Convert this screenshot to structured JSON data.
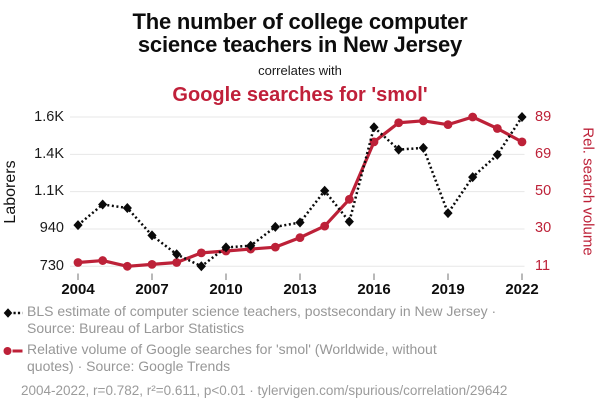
{
  "header": {
    "title_line1": "The number of college computer",
    "title_line2": "science teachers in New Jersey",
    "connector": "correlates with",
    "subtitle": "Google searches for 'smol'"
  },
  "colors": {
    "series_black": "#0a0a0a",
    "series_red": "#bd2138",
    "title_red": "#c0203a",
    "grid_line": "#e7e7e7",
    "x_tick_mark": "#8a8a8a",
    "legend_text": "#979797"
  },
  "chart_data": {
    "type": "line",
    "x": [
      2004,
      2005,
      2006,
      2007,
      2008,
      2009,
      2010,
      2011,
      2012,
      2013,
      2014,
      2015,
      2016,
      2017,
      2018,
      2019,
      2020,
      2021,
      2022
    ],
    "series": [
      {
        "name": "BLS estimate of computer science teachers, postsecondary in New Jersey",
        "axis": "left",
        "marker": "diamond",
        "line_style": "dotted",
        "values": [
          970,
          1090,
          1070,
          910,
          800,
          730,
          840,
          850,
          960,
          985,
          1170,
          990,
          1540,
          1410,
          1420,
          1040,
          1250,
          1380,
          1600
        ]
      },
      {
        "name": "Relative volume of Google searches for 'smol' (Worldwide, without quotes)",
        "axis": "right",
        "marker": "circle",
        "line_style": "solid",
        "values": [
          13,
          14,
          11,
          12,
          13,
          18,
          19,
          20,
          21,
          26,
          32,
          46,
          76,
          86,
          87,
          85,
          89,
          83,
          76
        ]
      }
    ],
    "left_axis": {
      "label": "Laborers",
      "min": 730,
      "max": 1600,
      "tick_labels": [
        "1.6K",
        "1.4K",
        "1.1K",
        "940",
        "730"
      ]
    },
    "right_axis": {
      "label": "Rel. search volume",
      "min": 11,
      "max": 89,
      "tick_labels": [
        "89",
        "69",
        "50",
        "30",
        "11"
      ]
    },
    "x_tick_labels": [
      "2004",
      "2007",
      "2010",
      "2013",
      "2016",
      "2019",
      "2022"
    ],
    "grid": "horizontal-only",
    "legend_position": "bottom-left"
  },
  "legend": {
    "entries": [
      {
        "line1": "BLS estimate of computer science teachers, postsecondary in New Jersey ·",
        "line2": "Source: Bureau of Larbor Statistics"
      },
      {
        "line1": "Relative volume of Google searches for 'smol' (Worldwide, without",
        "line2": "quotes) · Source: Google Trends"
      }
    ]
  },
  "footer": {
    "stats": "2004-2022, r=0.782, r²=0.611, p<0.01 · tylervigen.com/spurious/correlation/29642"
  }
}
